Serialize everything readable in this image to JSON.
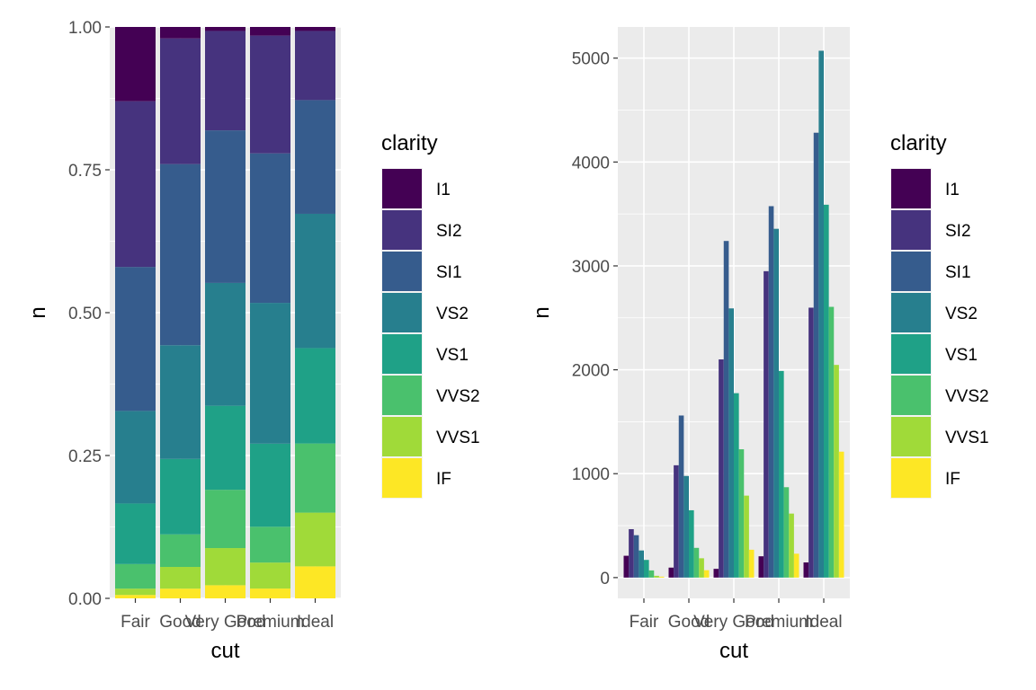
{
  "chart_data": [
    {
      "type": "bar",
      "position": "fill",
      "categories": [
        "Fair",
        "Good",
        "Very Good",
        "Premium",
        "Ideal"
      ],
      "xlabel": "cut",
      "ylabel": "n",
      "ylim": [
        0,
        1
      ],
      "yticks": [
        "0.00",
        "0.25",
        "0.50",
        "0.75",
        "1.00"
      ],
      "grid": true,
      "legend": {
        "title": "clarity",
        "placement": "right"
      },
      "series": [
        {
          "name": "I1",
          "color": "#440154",
          "values": [
            0.13,
            0.02,
            0.007,
            0.015,
            0.007
          ]
        },
        {
          "name": "SI2",
          "color": "#46337E",
          "values": [
            0.29,
            0.22,
            0.174,
            0.204,
            0.121
          ]
        },
        {
          "name": "SI1",
          "color": "#365C8D",
          "values": [
            0.252,
            0.317,
            0.267,
            0.259,
            0.199
          ]
        },
        {
          "name": "VS2",
          "color": "#277F8E",
          "values": [
            0.162,
            0.199,
            0.215,
            0.244,
            0.235
          ]
        },
        {
          "name": "VS1",
          "color": "#1FA187",
          "values": [
            0.106,
            0.132,
            0.147,
            0.144,
            0.167
          ]
        },
        {
          "name": "VVS2",
          "color": "#4AC16D",
          "values": [
            0.043,
            0.057,
            0.102,
            0.062,
            0.121
          ]
        },
        {
          "name": "VVS1",
          "color": "#A0DA39",
          "values": [
            0.011,
            0.038,
            0.065,
            0.045,
            0.094
          ]
        },
        {
          "name": "IF",
          "color": "#FDE725",
          "values": [
            0.006,
            0.017,
            0.023,
            0.017,
            0.056
          ]
        }
      ]
    },
    {
      "type": "bar",
      "position": "dodge",
      "categories": [
        "Fair",
        "Good",
        "Very Good",
        "Premium",
        "Ideal"
      ],
      "xlabel": "cut",
      "ylabel": "n",
      "ylim": [
        -200,
        5300
      ],
      "yticks": [
        "0",
        "1000",
        "2000",
        "3000",
        "4000",
        "5000"
      ],
      "grid": true,
      "legend": {
        "title": "clarity",
        "placement": "right"
      },
      "series": [
        {
          "name": "I1",
          "color": "#440154",
          "values": [
            210,
            96,
            84,
            205,
            146
          ]
        },
        {
          "name": "SI2",
          "color": "#46337E",
          "values": [
            466,
            1081,
            2100,
            2949,
            2598
          ]
        },
        {
          "name": "SI1",
          "color": "#365C8D",
          "values": [
            408,
            1560,
            3240,
            3575,
            4282
          ]
        },
        {
          "name": "VS2",
          "color": "#277F8E",
          "values": [
            261,
            978,
            2591,
            3357,
            5071
          ]
        },
        {
          "name": "VS1",
          "color": "#1FA187",
          "values": [
            170,
            648,
            1775,
            1989,
            3589
          ]
        },
        {
          "name": "VVS2",
          "color": "#4AC16D",
          "values": [
            69,
            286,
            1235,
            870,
            2606
          ]
        },
        {
          "name": "VVS1",
          "color": "#A0DA39",
          "values": [
            17,
            186,
            789,
            616,
            2047
          ]
        },
        {
          "name": "IF",
          "color": "#FDE725",
          "values": [
            9,
            71,
            268,
            230,
            1212
          ]
        }
      ]
    }
  ]
}
